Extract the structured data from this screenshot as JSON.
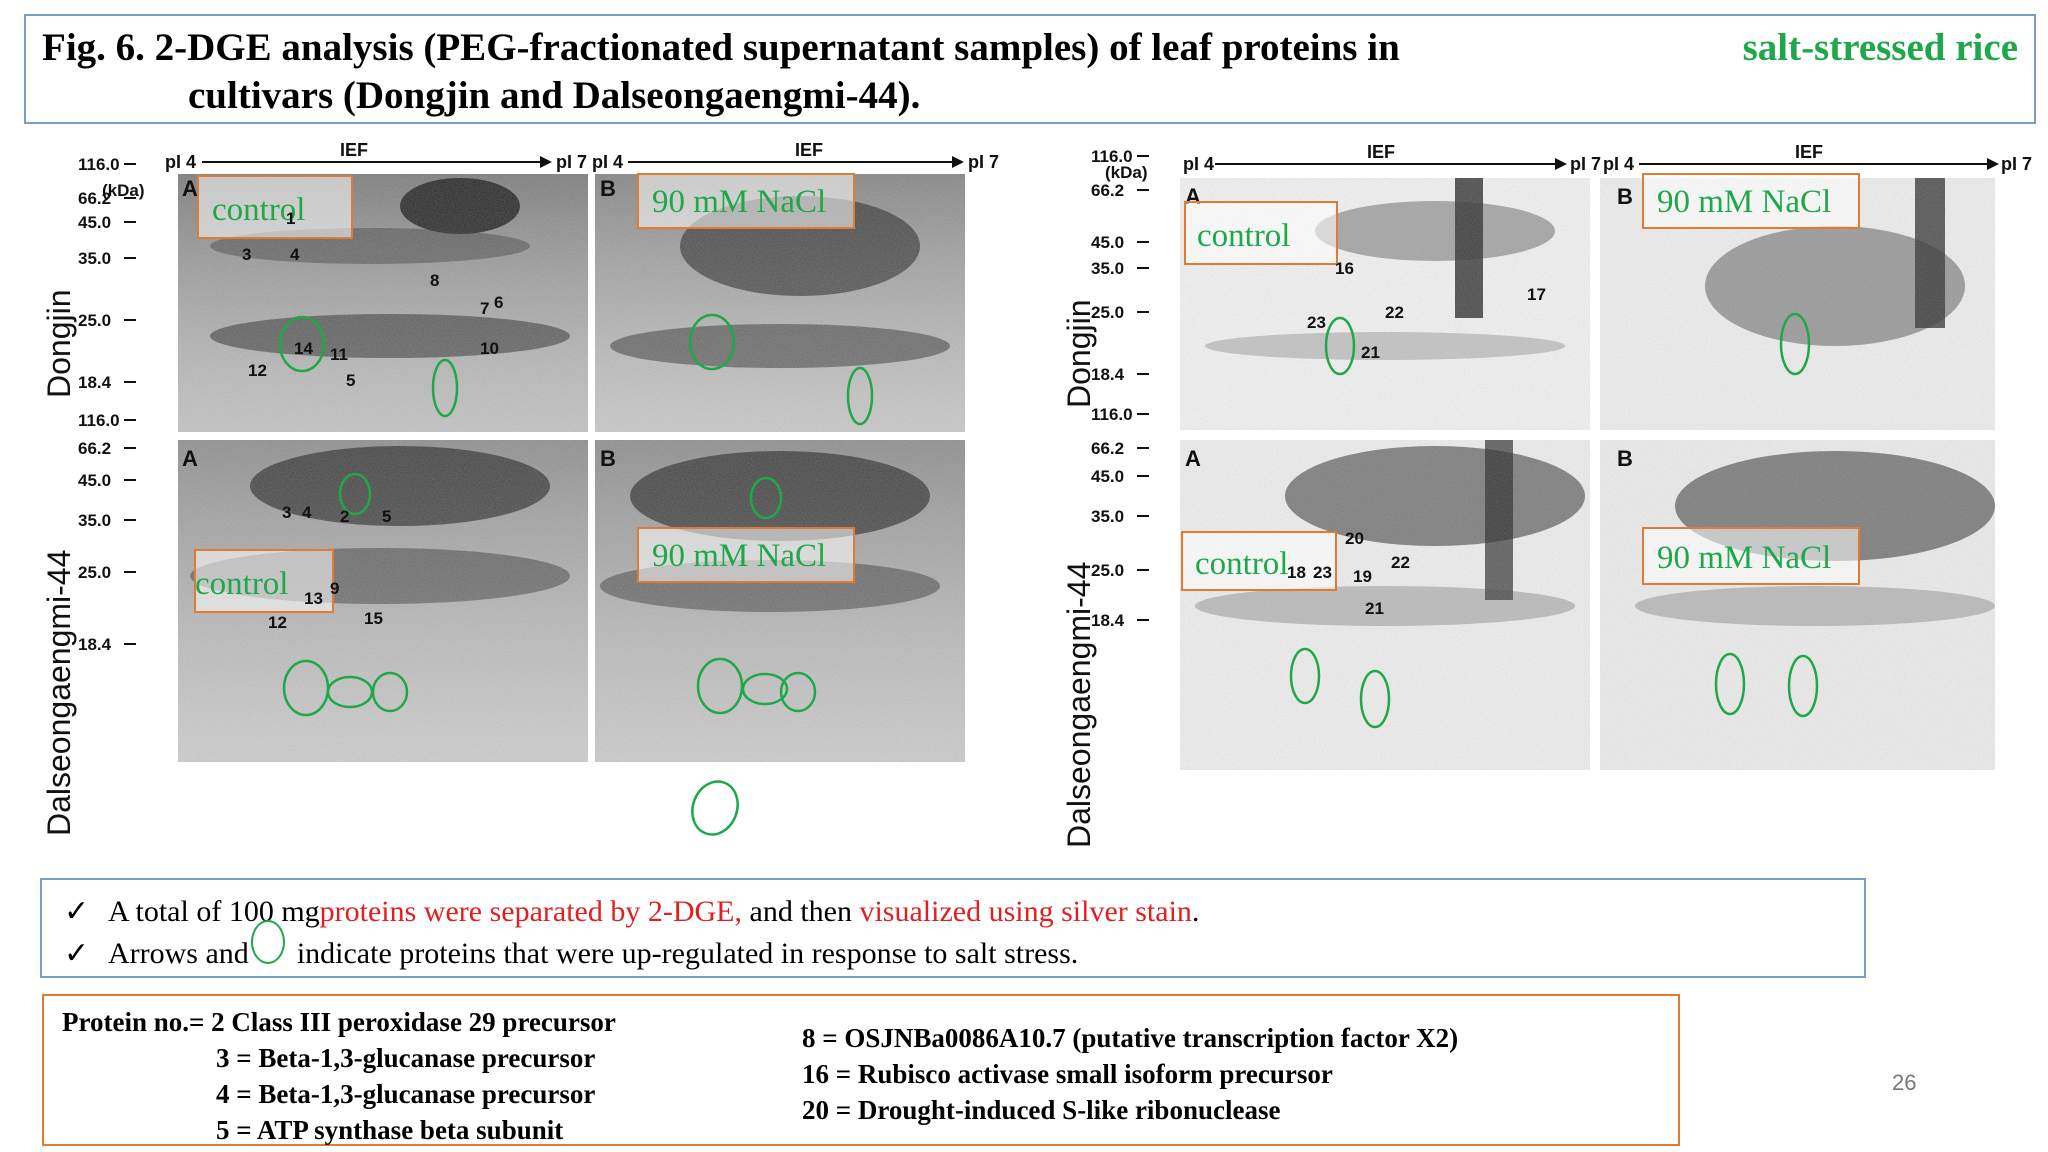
{
  "title": {
    "line1_prefix": "Fig. 6. 2-DGE analysis (PEG-fractionated supernatant samples) of leaf proteins in",
    "line1_highlight": "salt-stressed rice",
    "line2": "cultivars (Dongjin and Dalseongaengmi-44)."
  },
  "gel_common": {
    "pi_left": "pI 4",
    "pi_right": "pI 7",
    "ief": "IEF",
    "kda": "(kDa)",
    "panel_a": "A",
    "panel_b": "B",
    "control": "control",
    "nacl": "90 mM NaCl"
  },
  "gel_left": {
    "cultivar_top": "Dongjin",
    "cultivar_bottom": "Dalseongaengmi-44",
    "mw_top": [
      "116.0",
      "66.2",
      "45.0",
      "35.0",
      "25.0",
      "18.4"
    ],
    "mw_bottom": [
      "116.0",
      "66.2",
      "45.0",
      "35.0",
      "25.0",
      "18.4"
    ],
    "spots_top": [
      "1",
      "3",
      "4",
      "8",
      "7",
      "6",
      "10",
      "14",
      "11",
      "12",
      "5"
    ],
    "spots_bottom": [
      "3",
      "4",
      "2",
      "5",
      "9",
      "13",
      "12",
      "15"
    ]
  },
  "gel_right": {
    "cultivar_top": "Dongjin",
    "cultivar_bottom": "Dalseongaengmi-44",
    "mw_top": [
      "116.0",
      "66.2",
      "45.0",
      "35.0",
      "25.0",
      "18.4"
    ],
    "mw_bottom": [
      "116.0",
      "66.2",
      "45.0",
      "35.0",
      "25.0",
      "18.4"
    ],
    "spots_top": [
      "16",
      "17",
      "23",
      "22",
      "21"
    ],
    "spots_bottom": [
      "20",
      "18",
      "23",
      "19",
      "22",
      "21"
    ]
  },
  "notes": {
    "check": "✓",
    "line1_a": "A total of 100 mg ",
    "line1_red1": "proteins were separated by 2-DGE,",
    "line1_b": " and then ",
    "line1_red2": "visualized using silver stain",
    "line1_c": ".",
    "line2_a": "Arrows and",
    "line2_b": "indicate proteins that were up-regulated in response to salt stress."
  },
  "proteins": {
    "col1": [
      "Protein no.= 2 Class III peroxidase 29 precursor",
      "3 = Beta-1,3-glucanase precursor",
      "4 = Beta-1,3-glucanase precursor",
      "5 = ATP synthase beta subunit"
    ],
    "col2": [
      "8 = OSJNBa0086A10.7 (putative transcription factor X2)",
      "16 = Rubisco activase small isoform precursor",
      "20 = Drought-induced S-like ribonuclease"
    ]
  },
  "page_number": "26",
  "colors": {
    "highlight_green": "#1fa84a",
    "emphasis_red": "#e02020",
    "box_blue": "#7a9cc6",
    "box_orange": "#e07b30"
  }
}
